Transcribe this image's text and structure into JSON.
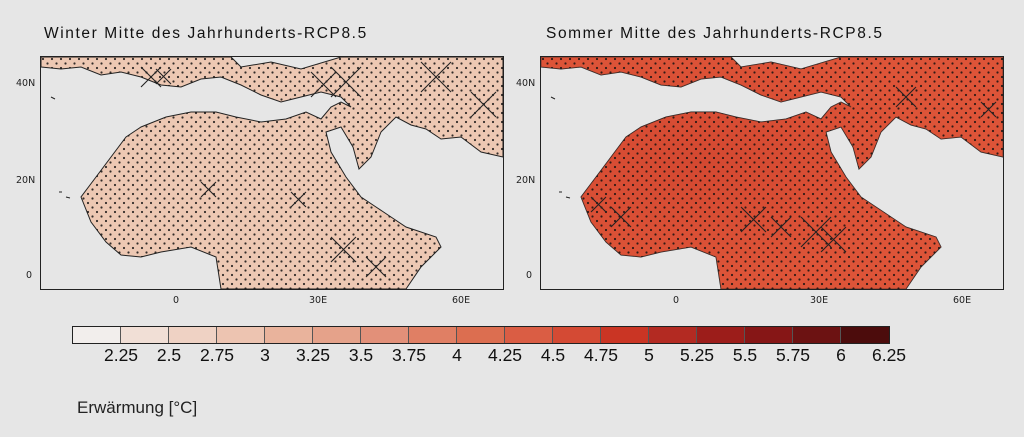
{
  "panels": {
    "left": {
      "title": "Winter Mitte des Jahrhunderts-RCP8.5",
      "fill": "#edc8b3",
      "fill_dark": "#e8bda6"
    },
    "right": {
      "title": "Sommer Mitte des Jahrhunderts-RCP8.5",
      "fill": "#dd5438",
      "fill_dark": "#c93a28"
    }
  },
  "axes": {
    "y_ticks": [
      "40N",
      "20N",
      "0"
    ],
    "x_ticks": [
      "0",
      "30E",
      "60E"
    ]
  },
  "colorbar": {
    "colors": [
      "#f2eeec",
      "#f1dfd6",
      "#efd2c4",
      "#edc4b1",
      "#e9b39c",
      "#e5a28a",
      "#e29079",
      "#e07f64",
      "#dc6e50",
      "#da5d44",
      "#d44a34",
      "#ca3524",
      "#b32a22",
      "#9c1d1a",
      "#861616",
      "#6c1212",
      "#4c0c0c"
    ],
    "labels": [
      "2.25",
      "2.5",
      "2.75",
      "3",
      "3.25",
      "3.5",
      "3.75",
      "4",
      "4.25",
      "4.5",
      "4.75",
      "5",
      "5.25",
      "5.5",
      "5.75",
      "6",
      "6.25"
    ]
  },
  "legend": {
    "title": "Erwärmung [°C]"
  },
  "icons": {
    "stipple": "dot-pattern-icon",
    "hatch": "cross-hatch-icon"
  }
}
